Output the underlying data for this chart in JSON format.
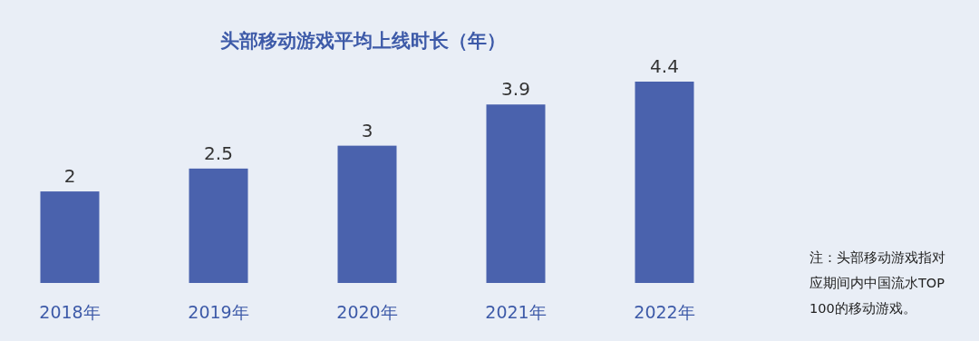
{
  "chart_data": {
    "type": "bar",
    "title": "头部移动游戏平均上线时长（年）",
    "categories": [
      "2018年",
      "2019年",
      "2020年",
      "2021年",
      "2022年"
    ],
    "values": [
      2,
      2.5,
      3,
      3.9,
      4.4
    ],
    "color": "#4a62ad",
    "data_labels": true,
    "annotations": [
      "注：头部移动游戏指对应期间内中国流水TOP100的移动游戏。"
    ]
  }
}
